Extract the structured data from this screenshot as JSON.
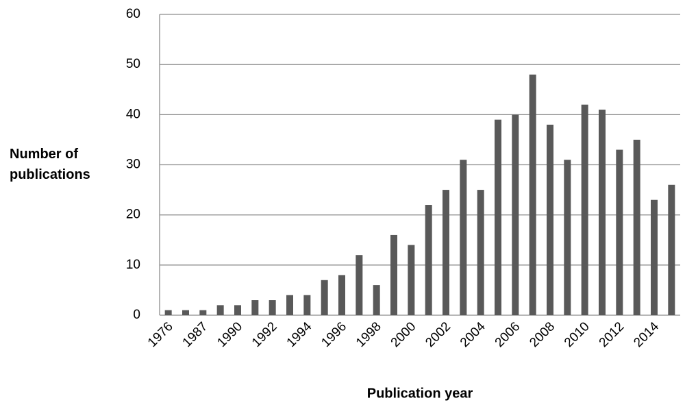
{
  "chart_data": {
    "type": "bar",
    "x_label": "Publication year",
    "y_label": "Number of publications",
    "categories": [
      "1976",
      null,
      "1987",
      null,
      "1990",
      null,
      "1992",
      null,
      "1994",
      null,
      "1996",
      null,
      "1998",
      null,
      "2000",
      null,
      "2002",
      null,
      "2004",
      null,
      "2006",
      null,
      "2008",
      null,
      "2010",
      null,
      "2012",
      null,
      "2014",
      null
    ],
    "values": [
      1,
      1,
      1,
      2,
      2,
      3,
      3,
      4,
      4,
      7,
      8,
      12,
      6,
      16,
      14,
      22,
      25,
      31,
      25,
      39,
      40,
      48,
      38,
      31,
      42,
      41,
      33,
      35,
      23,
      26
    ],
    "color": "#595959",
    "ylim": [
      0,
      60
    ],
    "yticks": [
      0,
      10,
      20,
      30,
      40,
      50,
      60
    ],
    "grid": true
  }
}
